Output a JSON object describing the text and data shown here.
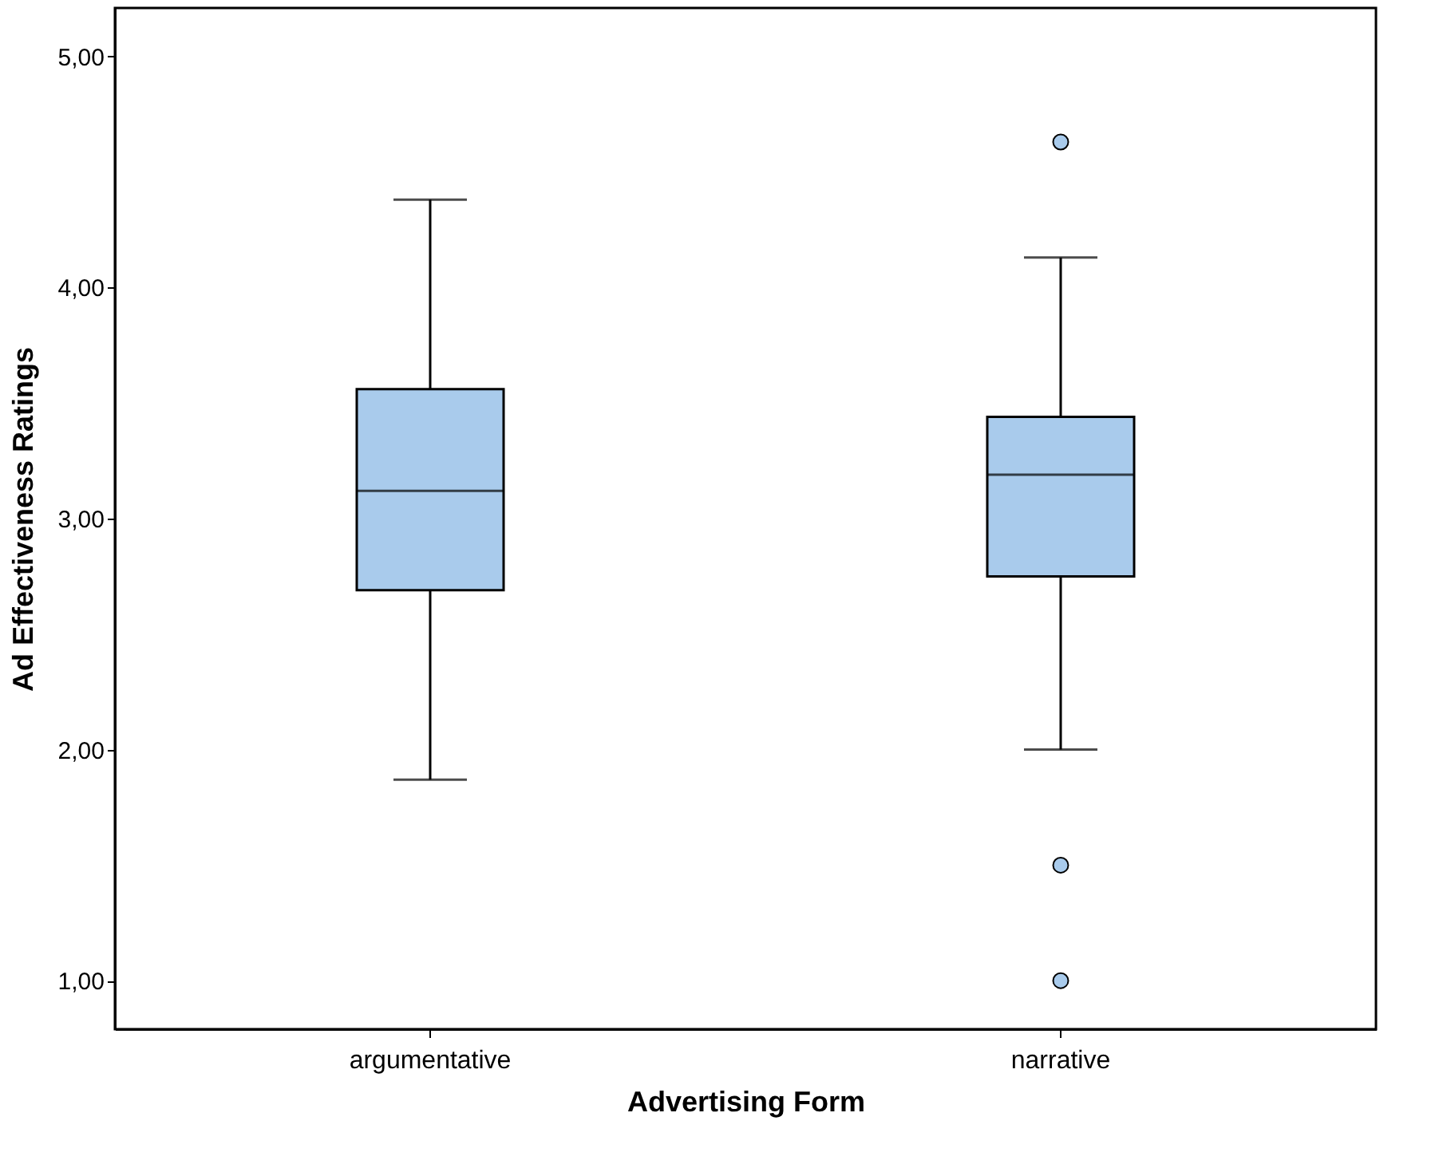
{
  "chart_data": {
    "type": "box",
    "xlabel": "Advertising Form",
    "ylabel": "Ad Effectiveness Ratings",
    "categories": [
      "argumentative",
      "narrative"
    ],
    "boxes": [
      {
        "low": 1.87,
        "q1": 2.69,
        "median": 3.12,
        "q3": 3.56,
        "high": 4.38
      },
      {
        "low": 2.0,
        "q1": 2.75,
        "median": 3.19,
        "q3": 3.44,
        "high": 4.13,
        "outliers": [
          4.63,
          1.5,
          1.0
        ]
      }
    ],
    "color": "#a9cbec",
    "ylim": [
      0.79,
      5.21
    ],
    "yticks": [
      {
        "value": 1,
        "label": "1,00"
      },
      {
        "value": 2,
        "label": "2,00"
      },
      {
        "value": 3,
        "label": "3,00"
      },
      {
        "value": 4,
        "label": "4,00"
      },
      {
        "value": 5,
        "label": "5,00"
      }
    ],
    "grid": false
  }
}
